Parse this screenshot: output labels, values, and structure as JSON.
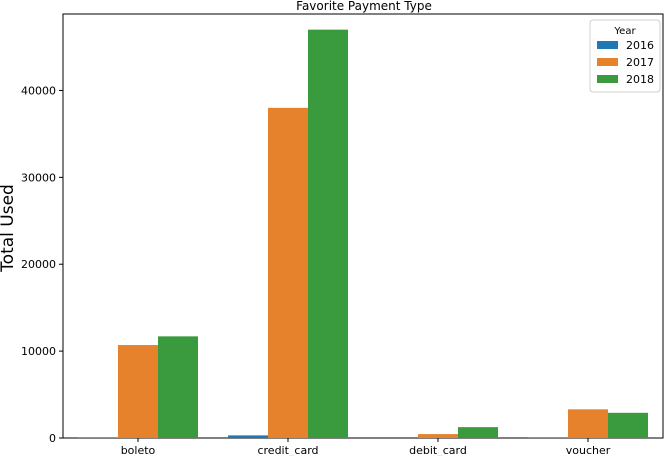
{
  "chart_data": {
    "type": "bar",
    "title": "Favorite Payment Type",
    "xlabel": "",
    "ylabel": "Total Used",
    "categories": [
      "boleto",
      "credit_card",
      "debit_card",
      "voucher"
    ],
    "series": [
      {
        "name": "2016",
        "color": "#1f77b4",
        "values": [
          80,
          300,
          0,
          80
        ]
      },
      {
        "name": "2017",
        "color": "#e6822b",
        "values": [
          10700,
          38000,
          450,
          3300
        ]
      },
      {
        "name": "2018",
        "color": "#3a9b3e",
        "values": [
          11700,
          47000,
          1250,
          2900
        ]
      }
    ],
    "ylim": [
      0,
      48800
    ],
    "yticks": [
      0,
      10000,
      20000,
      30000,
      40000
    ],
    "grid": false,
    "legend": {
      "title": "Year",
      "placement": "top-right"
    }
  }
}
